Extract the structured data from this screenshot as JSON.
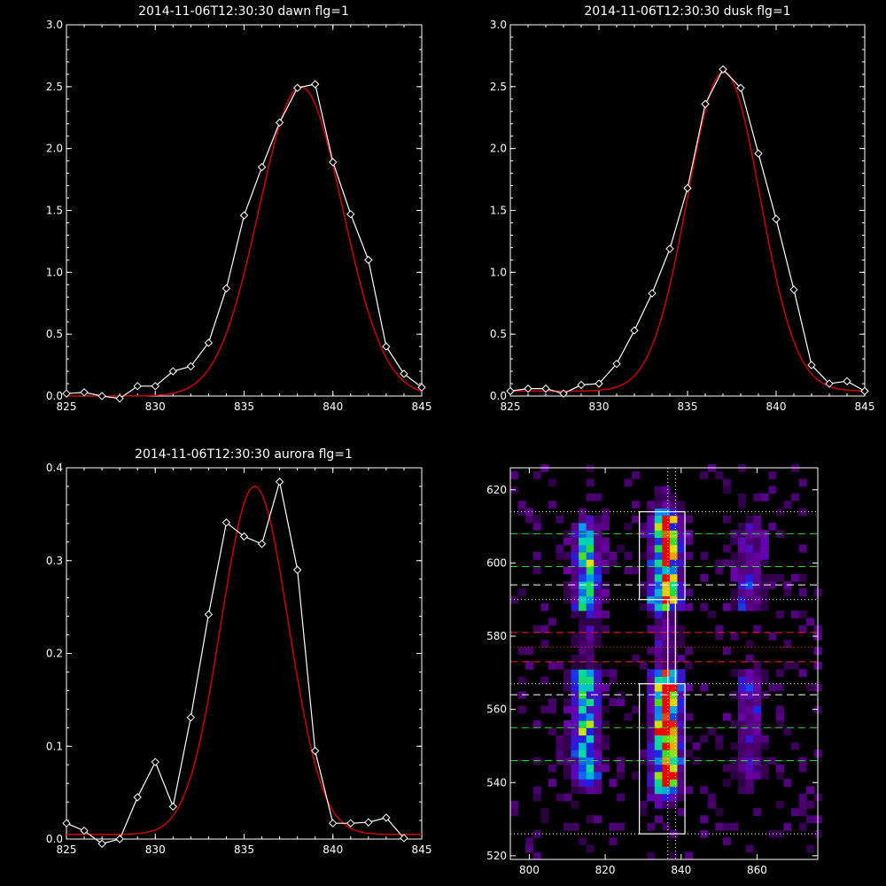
{
  "colors": {
    "background": "#000000",
    "axis": "#ffffff",
    "observed": "#ffffff",
    "fit": "#cc0000",
    "green_dash": "#22dd22",
    "red_dash": "#ee2222",
    "white_dash": "#ffffff"
  },
  "chart_data": [
    {
      "type": "line",
      "title": "2014-11-06T12:30:30 dawn flg=1",
      "xlim": [
        825,
        845
      ],
      "ylim": [
        0,
        3.0
      ],
      "x_ticks": [
        "825",
        "830",
        "835",
        "840",
        "845"
      ],
      "y_ticks": [
        "0.0",
        "0.5",
        "1.0",
        "1.5",
        "2.0",
        "2.5",
        "3.0"
      ],
      "series": [
        {
          "role": "observed",
          "x": [
            825,
            826,
            827,
            828,
            829,
            830,
            831,
            832,
            833,
            834,
            835,
            836,
            837,
            838,
            839,
            840,
            841,
            842,
            843,
            844,
            845
          ],
          "y": [
            0.02,
            0.03,
            0.0,
            -0.02,
            0.08,
            0.08,
            0.2,
            0.24,
            0.43,
            0.87,
            1.46,
            1.85,
            2.21,
            2.49,
            2.52,
            1.89,
            1.47,
            1.1,
            0.4,
            0.18,
            0.07
          ]
        },
        {
          "role": "fit",
          "gauss": {
            "amp": 2.5,
            "center": 838.2,
            "sigma": 2.35,
            "offset": 0.0
          }
        }
      ]
    },
    {
      "type": "line",
      "title": "2014-11-06T12:30:30 dusk flg=1",
      "xlim": [
        825,
        845
      ],
      "ylim": [
        0,
        3.0
      ],
      "x_ticks": [
        "825",
        "830",
        "835",
        "840",
        "845"
      ],
      "y_ticks": [
        "0.0",
        "0.5",
        "1.0",
        "1.5",
        "2.0",
        "2.5",
        "3.0"
      ],
      "series": [
        {
          "role": "observed",
          "x": [
            825,
            826,
            827,
            828,
            829,
            830,
            831,
            832,
            833,
            834,
            835,
            836,
            837,
            838,
            839,
            840,
            841,
            842,
            843,
            844,
            845
          ],
          "y": [
            0.04,
            0.06,
            0.06,
            0.02,
            0.09,
            0.1,
            0.26,
            0.53,
            0.83,
            1.19,
            1.68,
            2.36,
            2.64,
            2.49,
            1.96,
            1.43,
            0.86,
            0.25,
            0.1,
            0.12,
            0.04
          ]
        },
        {
          "role": "fit",
          "gauss": {
            "amp": 2.58,
            "center": 837.05,
            "sigma": 2.05,
            "offset": 0.04
          }
        }
      ]
    },
    {
      "type": "line",
      "title": "2014-11-06T12:30:30 aurora flg=1",
      "xlim": [
        825,
        845
      ],
      "ylim": [
        0,
        0.4
      ],
      "x_ticks": [
        "825",
        "830",
        "835",
        "840",
        "845"
      ],
      "y_ticks": [
        "0.0",
        "0.1",
        "0.2",
        "0.3",
        "0.4"
      ],
      "series": [
        {
          "role": "observed",
          "x": [
            825,
            826,
            827,
            828,
            829,
            830,
            831,
            832,
            833,
            834,
            835,
            836,
            837,
            838,
            839,
            840,
            841,
            842,
            843,
            844
          ],
          "y": [
            0.017,
            0.009,
            -0.005,
            0.0,
            0.045,
            0.083,
            0.035,
            0.131,
            0.242,
            0.341,
            0.326,
            0.318,
            0.385,
            0.29,
            0.095,
            0.017,
            0.017,
            0.018,
            0.023,
            0.001
          ]
        },
        {
          "role": "fit",
          "gauss": {
            "amp": 0.375,
            "center": 835.6,
            "sigma": 1.9,
            "offset": 0.005
          }
        }
      ]
    },
    {
      "type": "heatmap",
      "xlim": [
        795,
        876
      ],
      "ylim": [
        519,
        626
      ],
      "x_ticks": [
        "800",
        "820",
        "840",
        "860"
      ],
      "y_ticks": [
        "520",
        "540",
        "560",
        "580",
        "600",
        "620"
      ],
      "emission_columns": [
        {
          "x": 815,
          "y_min": 543,
          "y_max": 605,
          "strength": 0.65
        },
        {
          "x": 836,
          "y_min": 540,
          "y_max": 609,
          "strength": 1.0
        },
        {
          "x": 858,
          "y_min": 543,
          "y_max": 606,
          "strength": 0.3
        }
      ],
      "boxes": [
        {
          "x": [
            829,
            841
          ],
          "y": [
            590,
            614
          ]
        },
        {
          "x": [
            829,
            841
          ],
          "y": [
            526,
            567
          ]
        },
        {
          "x": [
            836.5,
            838.5
          ],
          "y": [
            567,
            590
          ]
        }
      ],
      "vertical_dotted_lines": [
        836.5,
        838.5
      ],
      "horizontal_lines": [
        {
          "y": 614,
          "style": "dotted",
          "color": "white"
        },
        {
          "y": 608,
          "style": "dashed",
          "color": "green"
        },
        {
          "y": 599,
          "style": "dashed",
          "color": "green"
        },
        {
          "y": 594,
          "style": "dashed",
          "color": "white"
        },
        {
          "y": 590,
          "style": "dotted",
          "color": "white"
        },
        {
          "y": 581,
          "style": "dashed",
          "color": "red"
        },
        {
          "y": 577,
          "style": "dotted",
          "color": "red"
        },
        {
          "y": 573,
          "style": "dashed",
          "color": "red"
        },
        {
          "y": 567,
          "style": "dotted",
          "color": "white"
        },
        {
          "y": 564,
          "style": "dashed",
          "color": "white"
        },
        {
          "y": 555,
          "style": "dashed",
          "color": "green"
        },
        {
          "y": 546,
          "style": "dashed",
          "color": "green"
        },
        {
          "y": 526,
          "style": "dotted",
          "color": "white"
        }
      ]
    }
  ]
}
